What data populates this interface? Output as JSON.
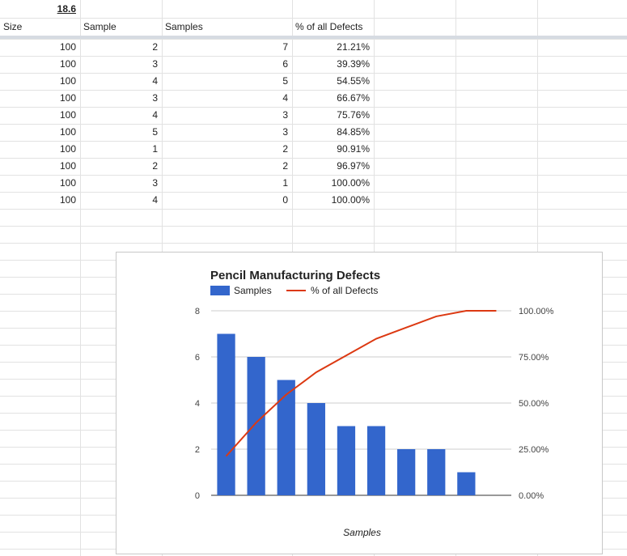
{
  "sheet": {
    "top_value": "18.6",
    "headers": [
      "Size",
      "Sample",
      "Samples",
      "% of all Defects"
    ],
    "rows": [
      {
        "size": "100",
        "sample": "2",
        "samples": "7",
        "pct": "21.21%"
      },
      {
        "size": "100",
        "sample": "3",
        "samples": "6",
        "pct": "39.39%"
      },
      {
        "size": "100",
        "sample": "4",
        "samples": "5",
        "pct": "54.55%"
      },
      {
        "size": "100",
        "sample": "3",
        "samples": "4",
        "pct": "66.67%"
      },
      {
        "size": "100",
        "sample": "4",
        "samples": "3",
        "pct": "75.76%"
      },
      {
        "size": "100",
        "sample": "5",
        "samples": "3",
        "pct": "84.85%"
      },
      {
        "size": "100",
        "sample": "1",
        "samples": "2",
        "pct": "90.91%"
      },
      {
        "size": "100",
        "sample": "2",
        "samples": "2",
        "pct": "96.97%"
      },
      {
        "size": "100",
        "sample": "3",
        "samples": "1",
        "pct": "100.00%"
      },
      {
        "size": "100",
        "sample": "4",
        "samples": "0",
        "pct": "100.00%"
      }
    ]
  },
  "chart_data": {
    "type": "bar",
    "title": "Pencil Manufacturing Defects",
    "xlabel": "Samples",
    "ylabel": "",
    "legend": "top-left",
    "grid": true,
    "ylim": [
      0,
      8
    ],
    "yticks": [
      "0",
      "2",
      "4",
      "6",
      "8"
    ],
    "y2lim": [
      0,
      1
    ],
    "y2ticks": [
      "0.00%",
      "25.00%",
      "50.00%",
      "75.00%",
      "100.00%"
    ],
    "series": [
      {
        "name": "Samples",
        "type": "bar",
        "color": "#3366cc",
        "values": [
          7,
          6,
          5,
          4,
          3,
          3,
          2,
          2,
          1,
          0
        ]
      },
      {
        "name": "% of all Defects",
        "type": "line",
        "axis": "right",
        "color": "#dc3912",
        "values": [
          0.2121,
          0.3939,
          0.5455,
          0.6667,
          0.7576,
          0.8485,
          0.9091,
          0.9697,
          1.0,
          1.0
        ]
      }
    ]
  }
}
